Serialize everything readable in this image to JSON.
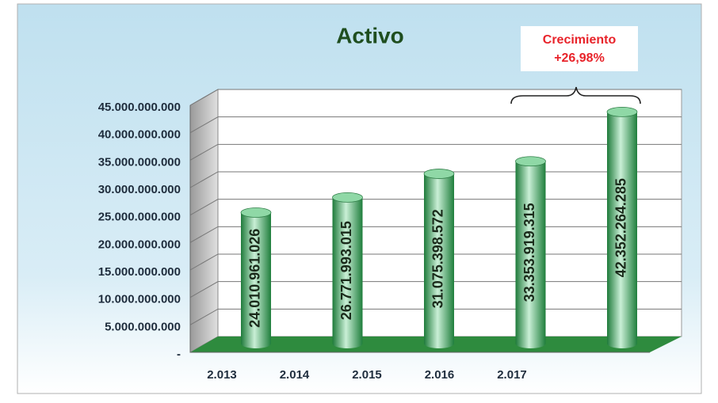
{
  "chart_data": {
    "type": "bar",
    "title": "Activo",
    "categories": [
      "2.013",
      "2.014",
      "2.015",
      "2.016",
      "2.017"
    ],
    "values": [
      24010961026,
      26771993015,
      31075398572,
      33353919315,
      42352264285
    ],
    "value_labels": [
      "24.010.961.026",
      "26.771.993.015",
      "31.075.398.572",
      "33.353.919.315",
      "42.352.264.285"
    ],
    "color": "#2e9e4f",
    "ylim": [
      0,
      45000000000
    ],
    "yticks": [
      {
        "value": 0,
        "label": "-"
      },
      {
        "value": 5000000000,
        "label": "5.000.000.000"
      },
      {
        "value": 10000000000,
        "label": "10.000.000.000"
      },
      {
        "value": 15000000000,
        "label": "15.000.000.000"
      },
      {
        "value": 20000000000,
        "label": "20.000.000.000"
      },
      {
        "value": 25000000000,
        "label": "25.000.000.000"
      },
      {
        "value": 30000000000,
        "label": "30.000.000.000"
      },
      {
        "value": 35000000000,
        "label": "35.000.000.000"
      },
      {
        "value": 40000000000,
        "label": "40.000.000.000"
      },
      {
        "value": 45000000000,
        "label": "45.000.000.000"
      }
    ],
    "grid": true,
    "annotation": [
      "Crecimiento",
      "+26,98%"
    ]
  }
}
